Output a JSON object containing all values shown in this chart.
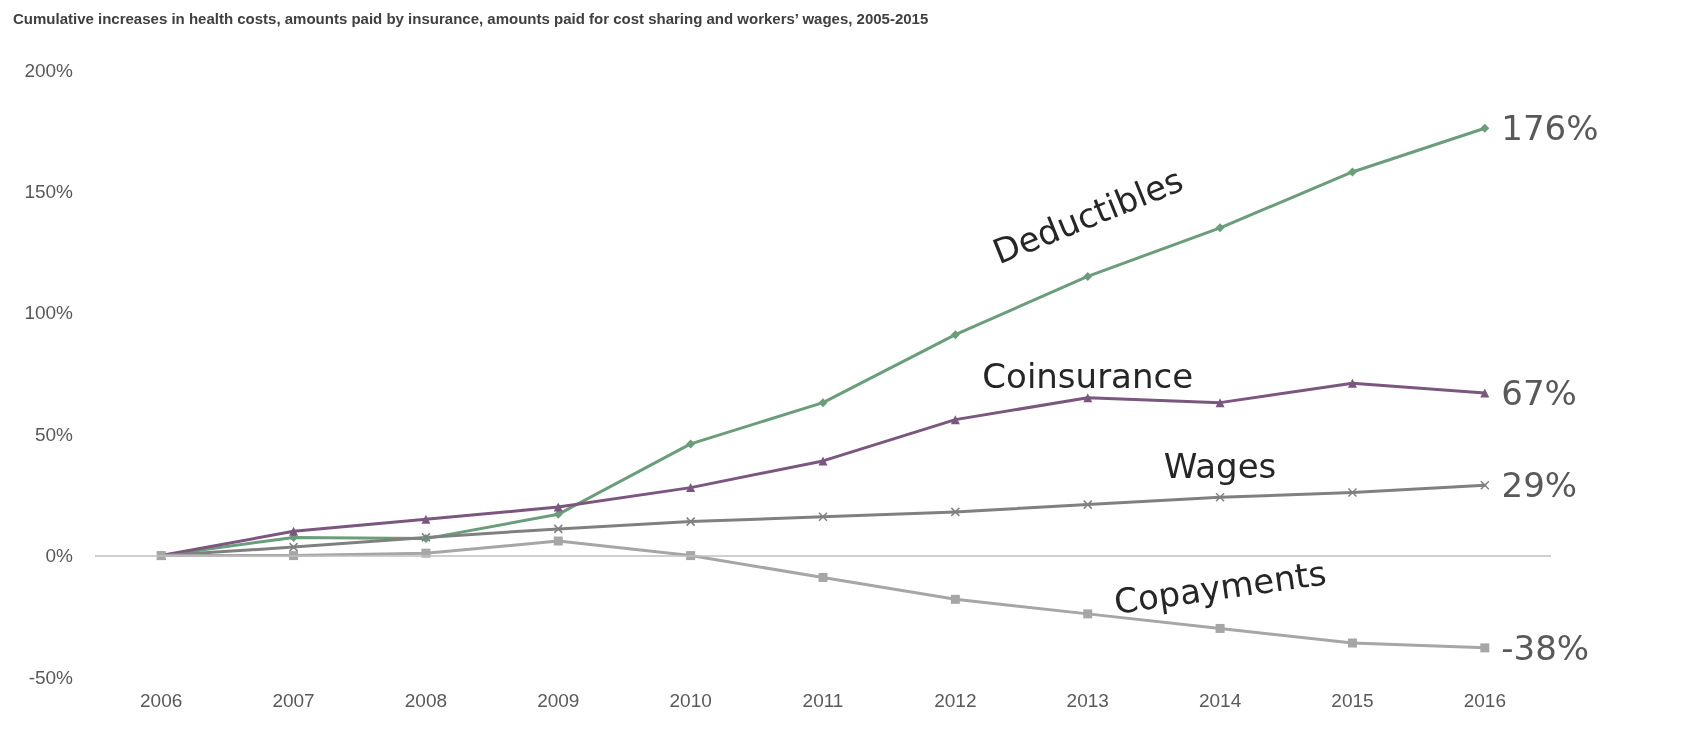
{
  "chart_data": {
    "type": "line",
    "title": "Cumulative increases in health costs, amounts paid by insurance, amounts paid for cost sharing and workers’ wages, 2005-2015",
    "categories": [
      "2006",
      "2007",
      "2008",
      "2009",
      "2010",
      "2011",
      "2012",
      "2013",
      "2014",
      "2015",
      "2016"
    ],
    "ylim": [
      -50,
      200
    ],
    "yticks": [
      {
        "value": -50,
        "label": "-50%"
      },
      {
        "value": 0,
        "label": "0%"
      },
      {
        "value": 50,
        "label": "50%"
      },
      {
        "value": 100,
        "label": "100%"
      },
      {
        "value": 150,
        "label": "150%"
      },
      {
        "value": 200,
        "label": "200%"
      }
    ],
    "grid": false,
    "legend": false,
    "ref_lines": [
      {
        "axis": "y",
        "value": 0,
        "color": "#bfbfbf"
      }
    ],
    "series": [
      {
        "name": "Deductibles",
        "color": "#6a9e7a",
        "marker": "diamond",
        "values": [
          0,
          7.5,
          7,
          17,
          46,
          63,
          91,
          115,
          135,
          158,
          176
        ],
        "value_labels": [
          null,
          null,
          null,
          null,
          null,
          null,
          null,
          null,
          null,
          null,
          "176%"
        ]
      },
      {
        "name": "Coinsurance",
        "color": "#7b567f",
        "marker": "triangle",
        "values": [
          0,
          10,
          15,
          20,
          28,
          39,
          56,
          65,
          63,
          71,
          67
        ],
        "value_labels": [
          null,
          null,
          null,
          null,
          null,
          null,
          null,
          null,
          null,
          null,
          "67%"
        ]
      },
      {
        "name": "Wages",
        "color": "#808080",
        "marker": "cross",
        "values": [
          0,
          3.5,
          7.5,
          11,
          14,
          16,
          18,
          21,
          24,
          26,
          29
        ],
        "value_labels": [
          null,
          null,
          null,
          null,
          null,
          null,
          null,
          null,
          null,
          null,
          "29%"
        ]
      },
      {
        "name": "Copayments",
        "color": "#a6a6a6",
        "marker": "square",
        "values": [
          0,
          0,
          1,
          6,
          0,
          -9,
          -18,
          -24,
          -30,
          -36,
          -38
        ],
        "value_labels": [
          null,
          null,
          null,
          null,
          null,
          null,
          null,
          null,
          null,
          null,
          "-38%"
        ]
      }
    ]
  }
}
